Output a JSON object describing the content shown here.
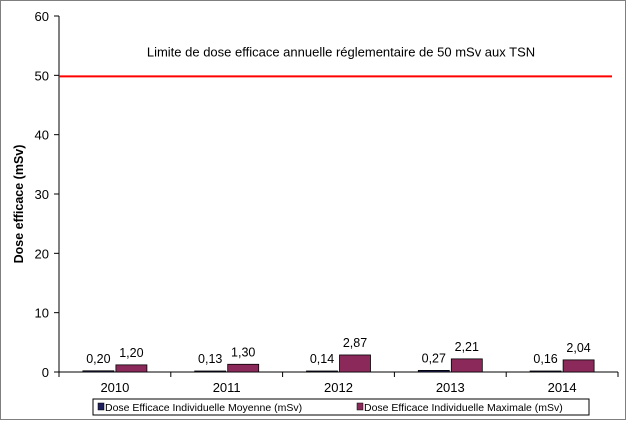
{
  "chart_data": {
    "type": "bar",
    "title": "",
    "xlabel": "",
    "ylabel": "Dose efficace (mSv)",
    "ylim": [
      0,
      60
    ],
    "yticks": [
      0,
      10,
      20,
      30,
      40,
      50,
      60
    ],
    "grid": false,
    "legend_position": "bottom",
    "categories": [
      "2010",
      "2011",
      "2012",
      "2013",
      "2014"
    ],
    "series": [
      {
        "name": "Dose Efficace Individuelle Moyenne (mSv)",
        "color": "#1f1f5c",
        "values": [
          0.2,
          0.13,
          0.14,
          0.27,
          0.16
        ],
        "labels": [
          "0,20",
          "0,13",
          "0,14",
          "0,27",
          "0,16"
        ]
      },
      {
        "name": "Dose Efficace Individuelle Maximale (mSv)",
        "color": "#8b2a5a",
        "values": [
          1.2,
          1.3,
          2.87,
          2.21,
          2.04
        ],
        "labels": [
          "1,20",
          "1,30",
          "2,87",
          "2,21",
          "2,04"
        ]
      }
    ],
    "reference_line": {
      "value": 50,
      "color": "#ff0000",
      "label": "Limite de dose efficace annuelle réglementaire de 50 mSv aux TSN"
    }
  }
}
